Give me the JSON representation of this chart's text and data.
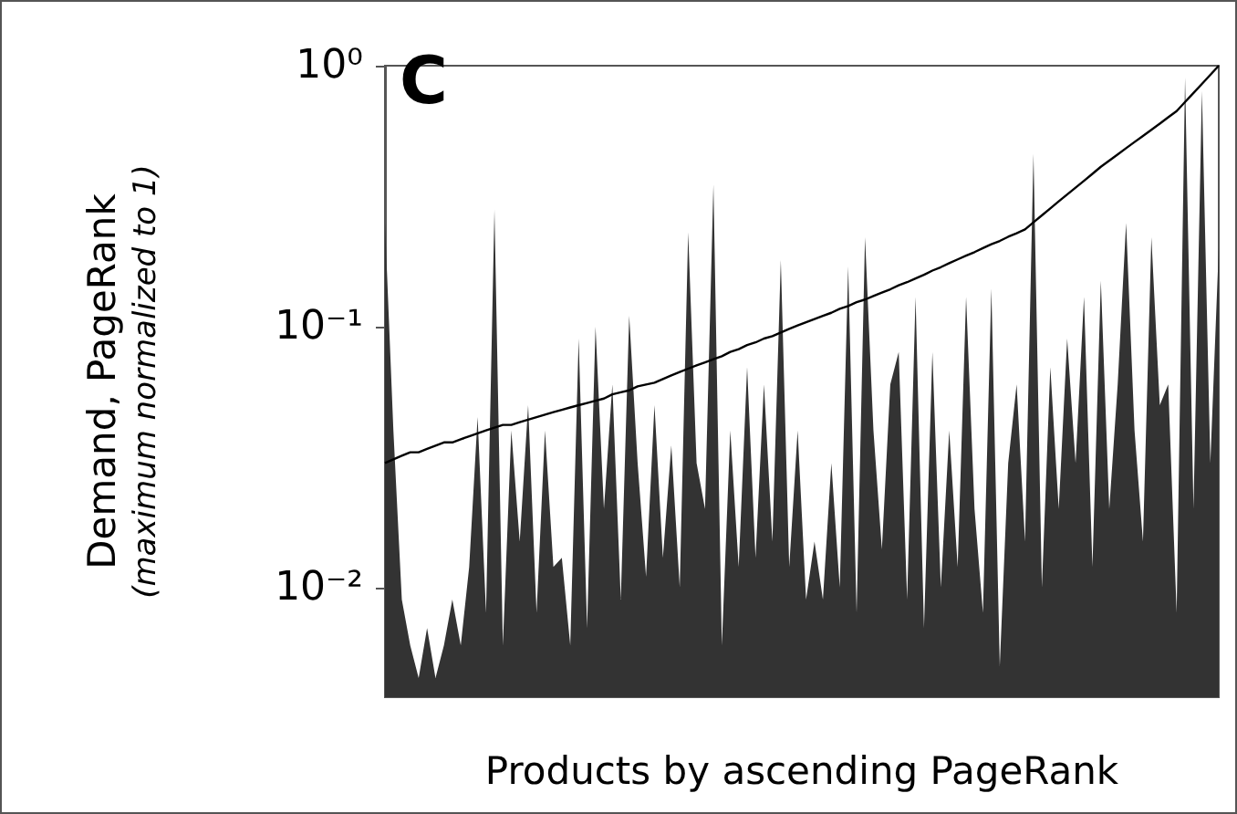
{
  "chart_data": {
    "type": "area",
    "xlabel": "Products by ascending PageRank",
    "ylabel": "Demand, PageRank\n(maximum normalized to 1)",
    "annotations": [
      "C"
    ],
    "categories": [
      null,
      null,
      null,
      null,
      null,
      null,
      null,
      null,
      null,
      null,
      null,
      null,
      null,
      null,
      null,
      null,
      null,
      null,
      null,
      null,
      null,
      null,
      null,
      null,
      null,
      null,
      null,
      null,
      null,
      null,
      null,
      null,
      null,
      null,
      null,
      null,
      null,
      null,
      null,
      null,
      null,
      null,
      null,
      null,
      null,
      null,
      null,
      null,
      null,
      null,
      null,
      null,
      null,
      null,
      null,
      null,
      null,
      null,
      null,
      null,
      null,
      null,
      null,
      null,
      null,
      null,
      null,
      null,
      null,
      null,
      null,
      null,
      null,
      null,
      null,
      null,
      null,
      null,
      null,
      null,
      null,
      null,
      null,
      null,
      null,
      null,
      null,
      null,
      null,
      null,
      null,
      null,
      null,
      null,
      null,
      null,
      null,
      null,
      null,
      null
    ],
    "series": [
      {
        "color": "#333333",
        "values": [
          0.25,
          0.04,
          0.009,
          0.006,
          0.0045,
          0.007,
          0.0045,
          0.006,
          0.009,
          0.006,
          0.012,
          0.045,
          0.008,
          0.28,
          0.006,
          0.04,
          0.015,
          0.05,
          0.008,
          0.04,
          0.012,
          0.013,
          0.006,
          0.09,
          0.007,
          0.1,
          0.02,
          0.06,
          0.009,
          0.11,
          0.03,
          0.011,
          0.05,
          0.013,
          0.035,
          0.01,
          0.23,
          0.03,
          0.02,
          0.35,
          0.006,
          0.04,
          0.012,
          0.07,
          0.013,
          0.06,
          0.015,
          0.18,
          0.012,
          0.04,
          0.009,
          0.015,
          0.009,
          0.03,
          0.01,
          0.17,
          0.008,
          0.22,
          0.04,
          0.014,
          0.06,
          0.08,
          0.009,
          0.13,
          0.007,
          0.08,
          0.01,
          0.04,
          0.012,
          0.13,
          0.02,
          0.008,
          0.14,
          0.005,
          0.03,
          0.06,
          0.015,
          0.46,
          0.01,
          0.07,
          0.02,
          0.09,
          0.03,
          0.13,
          0.012,
          0.15,
          0.02,
          0.06,
          0.25,
          0.04,
          0.015,
          0.22,
          0.05,
          0.06,
          0.008,
          0.9,
          0.02,
          0.8,
          0.03,
          0.2
        ]
      },
      {
        "type": "line",
        "color": "#000000",
        "values": [
          0.03,
          0.031,
          0.032,
          0.033,
          0.033,
          0.034,
          0.035,
          0.036,
          0.036,
          0.037,
          0.038,
          0.039,
          0.04,
          0.041,
          0.042,
          0.042,
          0.043,
          0.044,
          0.045,
          0.046,
          0.047,
          0.048,
          0.049,
          0.05,
          0.051,
          0.052,
          0.053,
          0.055,
          0.056,
          0.057,
          0.059,
          0.06,
          0.061,
          0.063,
          0.065,
          0.067,
          0.069,
          0.071,
          0.073,
          0.075,
          0.077,
          0.08,
          0.082,
          0.085,
          0.087,
          0.09,
          0.092,
          0.095,
          0.098,
          0.101,
          0.104,
          0.107,
          0.11,
          0.113,
          0.117,
          0.12,
          0.124,
          0.127,
          0.131,
          0.135,
          0.139,
          0.144,
          0.148,
          0.153,
          0.158,
          0.164,
          0.169,
          0.175,
          0.181,
          0.187,
          0.193,
          0.2,
          0.207,
          0.213,
          0.221,
          0.228,
          0.236,
          0.251,
          0.267,
          0.284,
          0.302,
          0.321,
          0.341,
          0.362,
          0.385,
          0.41,
          0.433,
          0.457,
          0.483,
          0.51,
          0.538,
          0.568,
          0.6,
          0.634,
          0.67,
          0.726,
          0.786,
          0.851,
          0.923,
          1.0
        ]
      }
    ],
    "ylim": [
      0.0038,
      1
    ],
    "yticks": [
      {
        "value": 0.01,
        "label": "10⁻²"
      },
      {
        "value": 0.1,
        "label": "10⁻¹"
      },
      {
        "value": 1,
        "label": "10⁰"
      }
    ],
    "log": true,
    "grid": false,
    "tick_labels": "y",
    "line_style": "solid"
  }
}
